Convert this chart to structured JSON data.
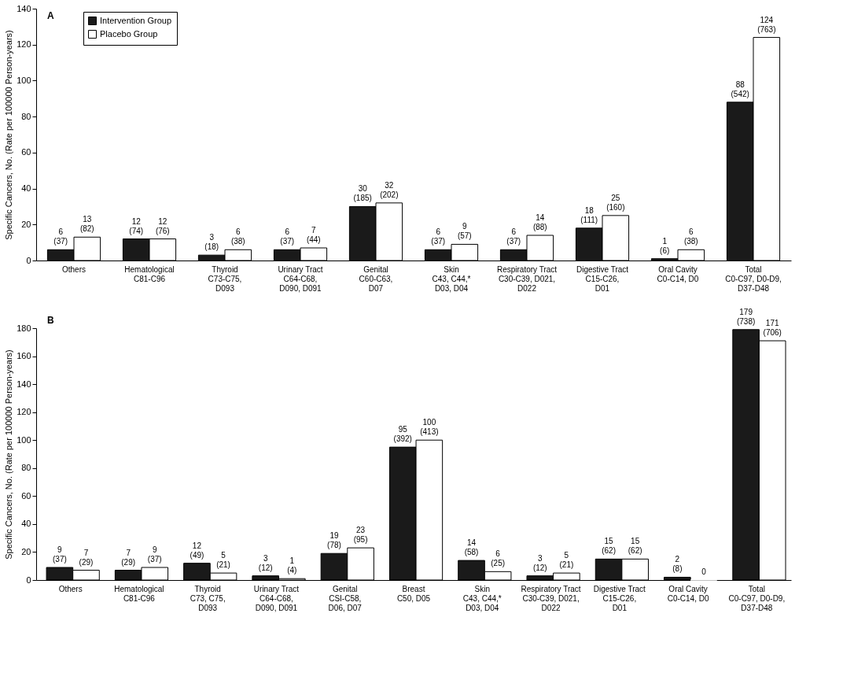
{
  "chart_data": [
    {
      "type": "bar",
      "title": "A",
      "ylabel": "Specific Cancers, No. (Rate per 100000 Person-years)",
      "categories": [
        "Others",
        "Hematological\nC81-C96",
        "Thyroid\nC73-C75,\nD093",
        "Urinary Tract\nC64-C68,\nD090, D091",
        "Genital\nC60-C63,\nD07",
        "Skin\nC43, C44,*\nD03, D04",
        "Respiratory Tract\nC30-C39, D021,\nD022",
        "Digestive Tract\nC15-C26,\nD01",
        "Oral Cavity\nC0-C14, D0",
        "Total\nC0-C97, D0-D9,\nD37-D48"
      ],
      "series": [
        {
          "name": "Intervention Group",
          "color": "#1a1a1a",
          "values": [
            6,
            12,
            3,
            6,
            30,
            6,
            6,
            18,
            1,
            88
          ],
          "value_labels": [
            "6\n(37)",
            "12\n(74)",
            "3\n(18)",
            "6\n(37)",
            "30\n(185)",
            "6\n(37)",
            "6\n(37)",
            "18\n(111)",
            "1\n(6)",
            "88\n(542)"
          ]
        },
        {
          "name": "Placebo Group",
          "color": "#ffffff",
          "values": [
            13,
            12,
            6,
            7,
            32,
            9,
            14,
            25,
            6,
            124
          ],
          "value_labels": [
            "13\n(82)",
            "12\n(76)",
            "6\n(38)",
            "7\n(44)",
            "32\n(202)",
            "9\n(57)",
            "14\n(88)",
            "25\n(160)",
            "6\n(38)",
            "124\n(763)"
          ]
        }
      ],
      "ylim": [
        0,
        140
      ],
      "yticks": [
        0,
        20,
        40,
        60,
        80,
        100,
        120,
        140
      ],
      "grid": false,
      "legend": "top left"
    },
    {
      "type": "bar",
      "title": "B",
      "ylabel": "Specific Cancers, No. (Rate per 100000 Person-years)",
      "categories": [
        "Others",
        "Hematological\nC81-C96",
        "Thyroid\nC73, C75,\nD093",
        "Urinary Tract\nC64-C68,\nD090, D091",
        "Genital\nCSI-C58,\nD06, D07",
        "Breast\nC50, D05",
        "Skin\nC43, C44,*\nD03, D04",
        "Respiratory Tract\nC30-C39, D021,\nD022",
        "Digestive Tract\nC15-C26,\nD01",
        "Oral Cavity\nC0-C14, D0",
        "Total\nC0-C97, D0-D9,\nD37-D48"
      ],
      "series": [
        {
          "color": "#1a1a1a",
          "values": [
            9,
            7,
            12,
            3,
            19,
            95,
            14,
            3,
            15,
            2,
            179
          ],
          "value_labels": [
            "9\n(37)",
            "7\n(29)",
            "12\n(49)",
            "3\n(12)",
            "19\n(78)",
            "95\n(392)",
            "14\n(58)",
            "3\n(12)",
            "15\n(62)",
            "2\n(8)",
            "179\n(738)"
          ]
        },
        {
          "color": "#ffffff",
          "values": [
            7,
            9,
            5,
            1,
            23,
            100,
            6,
            5,
            15,
            0,
            171
          ],
          "value_labels": [
            "7\n(29)",
            "9\n(37)",
            "5\n(21)",
            "1\n(4)",
            "23\n(95)",
            "100\n(413)",
            "6\n(25)",
            "5\n(21)",
            "15\n(62)",
            "0",
            "171\n(706)"
          ]
        }
      ],
      "ylim": [
        0,
        180
      ],
      "yticks": [
        0,
        20,
        40,
        60,
        80,
        100,
        120,
        140,
        160,
        180
      ],
      "grid": false,
      "legend": false
    }
  ]
}
